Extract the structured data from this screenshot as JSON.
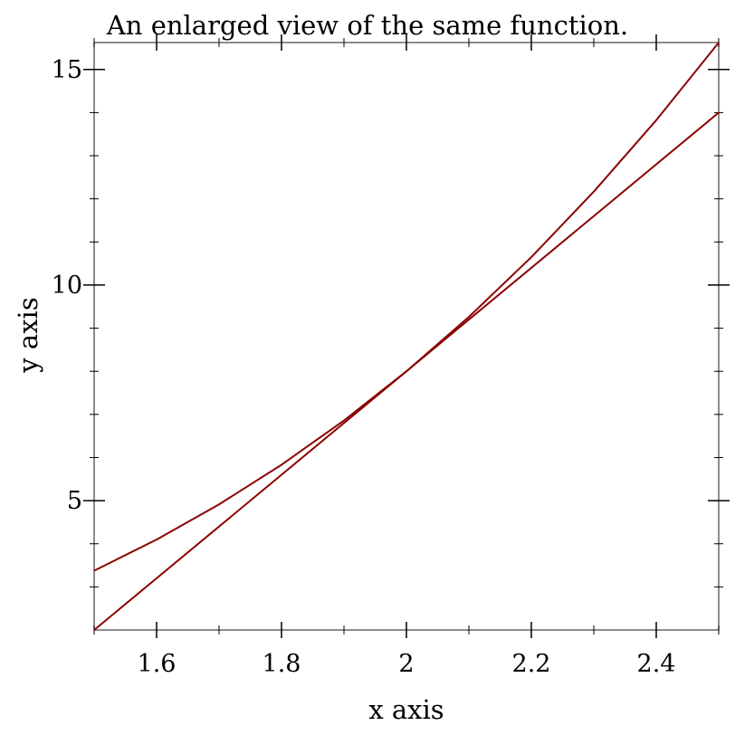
{
  "chart_data": {
    "type": "line",
    "title": "An enlarged view of the same function.",
    "xlabel": "x axis",
    "ylabel": "y axis",
    "xlim": [
      1.5,
      2.5
    ],
    "ylim": [
      2,
      15.625
    ],
    "x_major_ticks": [
      1.6,
      1.8,
      2.0,
      2.2,
      2.4
    ],
    "x_tick_labels": [
      "1.6",
      "1.8",
      "2",
      "2.2",
      "2.4"
    ],
    "x_minor_ticks": [
      1.5,
      1.7,
      1.9,
      2.1,
      2.3,
      2.5
    ],
    "y_major_ticks": [
      5,
      10,
      15
    ],
    "y_tick_labels": [
      "5",
      "10",
      "15"
    ],
    "y_minor_ticks": [
      3,
      4,
      6,
      7,
      8,
      9,
      11,
      12,
      13,
      14
    ],
    "grid": false,
    "series_color": "#8b0000",
    "series": [
      {
        "x": [
          1.5,
          1.6,
          1.7,
          1.8,
          1.9,
          2.0,
          2.1,
          2.2,
          2.3,
          2.4,
          2.5
        ],
        "y": [
          3.375,
          4.096,
          4.913,
          5.832,
          6.859,
          8.0,
          9.261,
          10.648,
          12.167,
          13.824,
          15.625
        ]
      },
      {
        "x": [
          1.5,
          2.5
        ],
        "y": [
          2.0,
          14.0
        ]
      }
    ]
  }
}
